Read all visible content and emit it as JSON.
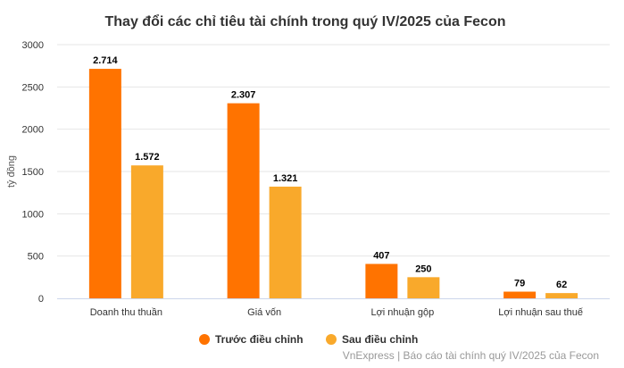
{
  "chart_data": {
    "type": "bar",
    "title": "Thay đổi các chỉ tiêu tài chính trong quý IV/2025 của Fecon",
    "ylabel": "tỷ đồng",
    "xlabel": "",
    "ylim": [
      0,
      3000
    ],
    "yticks": [
      0,
      500,
      1000,
      1500,
      2000,
      2500,
      3000
    ],
    "grid": true,
    "legend_position": "bottom",
    "categories": [
      "Doanh thu thuần",
      "Giá vốn",
      "Lợi nhuận gộp",
      "Lợi nhuận sau thuế"
    ],
    "series": [
      {
        "name": "Trước điều chỉnh",
        "color": "#ff7300",
        "values": [
          2714,
          2307,
          407,
          79
        ],
        "labels": [
          "2.714",
          "2.307",
          "407",
          "79"
        ]
      },
      {
        "name": "Sau điều chỉnh",
        "color": "#f9a92b",
        "values": [
          1572,
          1321,
          250,
          62
        ],
        "labels": [
          "1.572",
          "1.321",
          "250",
          "62"
        ]
      }
    ],
    "credit": "VnExpress | Báo cáo tài chính quý IV/2025 của Fecon"
  }
}
